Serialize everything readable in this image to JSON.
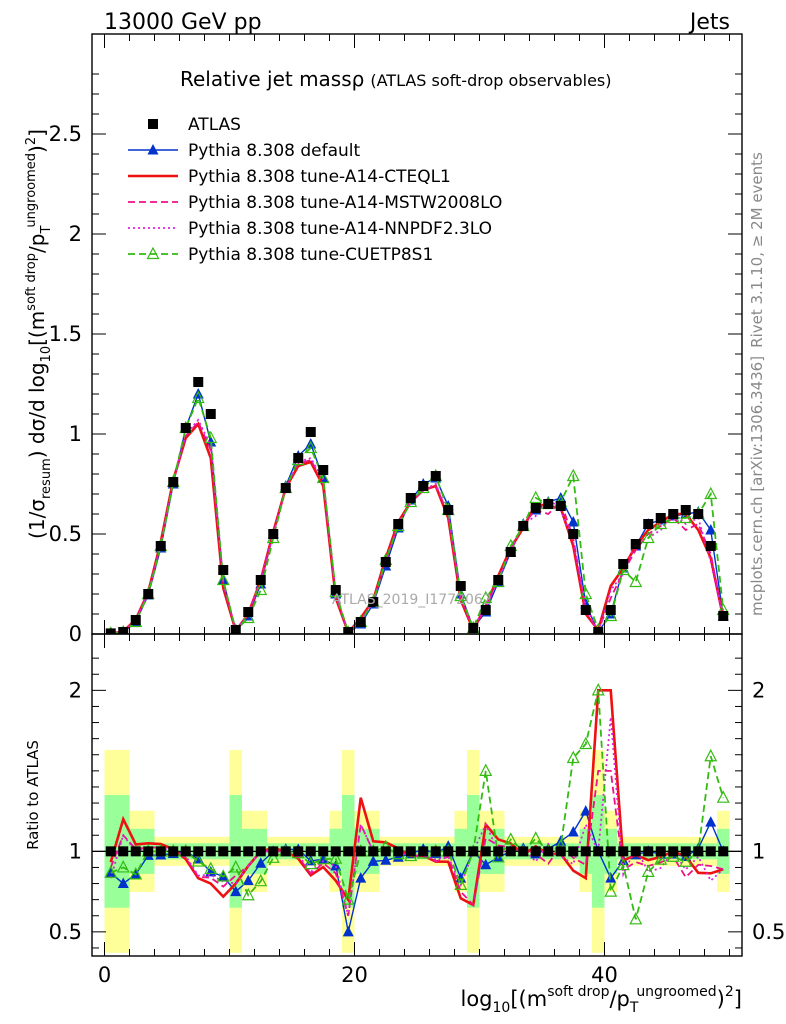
{
  "header": {
    "left": "13000 GeV pp",
    "right": "Jets"
  },
  "title": "Relative jet massρ",
  "subtitle": "(ATLAS soft-drop observables)",
  "side_label_top": "Rivet 3.1.10, ≥ 2M events",
  "side_label_bottom": "mcplots.cern.ch [arXiv:1306.3436]",
  "watermark": "ATLAS_2019_I1772062",
  "ylabel_main": "(1/σ_resum) dσ/d log10[(m^(soft drop)/p_T^(ungroomed))^2]",
  "ylabel_ratio": "Ratio to ATLAS",
  "xlabel": "log10[(m^(soft drop)/p_T^(ungroomed))^2]",
  "legend": [
    {
      "label": "ATLAS",
      "color": "#000000",
      "marker": "square",
      "dash": "none"
    },
    {
      "label": "Pythia 8.308 default",
      "color": "#0033cc",
      "marker": "triangle",
      "dash": "solid"
    },
    {
      "label": "Pythia 8.308 tune-A14-CTEQL1",
      "color": "#ee1111",
      "marker": "none",
      "dash": "solid-thick"
    },
    {
      "label": "Pythia 8.308 tune-A14-MSTW2008LO",
      "color": "#ee1188",
      "marker": "none",
      "dash": "dashed"
    },
    {
      "label": "Pythia 8.308 tune-A14-NNPDF2.3LO",
      "color": "#dd22dd",
      "marker": "none",
      "dash": "dotted"
    },
    {
      "label": "Pythia 8.308 tune-CUETP8S1",
      "color": "#33bb11",
      "marker": "open-triangle",
      "dash": "dashed"
    }
  ],
  "chart_data": {
    "type": "line",
    "main": {
      "xlim": [
        -1,
        51
      ],
      "ylim": [
        0,
        3
      ],
      "yticks": [
        0,
        0.5,
        1,
        1.5,
        2,
        2.5
      ],
      "ytick_labels": [
        "0",
        "0.5",
        "1",
        "1.5",
        "2",
        "2.5"
      ]
    },
    "ratio": {
      "xlim": [
        -1,
        51
      ],
      "ylim": [
        0.35,
        2.35
      ],
      "yticks": [
        0.5,
        1,
        2
      ],
      "ytick_labels": [
        "0.5",
        "1",
        "2"
      ]
    },
    "xticks": [
      0,
      20,
      40
    ],
    "xtick_labels": [
      "0",
      "20",
      "40"
    ],
    "x": [
      0.5,
      1.5,
      2.5,
      3.5,
      4.5,
      5.5,
      6.5,
      7.5,
      8.5,
      9.5,
      10.5,
      11.5,
      12.5,
      13.5,
      14.5,
      15.5,
      16.5,
      17.5,
      18.5,
      19.5,
      20.5,
      21.5,
      22.5,
      23.5,
      24.5,
      25.5,
      26.5,
      27.5,
      28.5,
      29.5,
      30.5,
      31.5,
      32.5,
      33.5,
      34.5,
      35.5,
      36.5,
      37.5,
      38.5,
      39.5,
      40.5,
      41.5,
      42.5,
      43.5,
      44.5,
      45.5,
      46.5,
      47.5,
      48.5,
      49.5
    ],
    "series": [
      {
        "name": "ATLAS",
        "values": [
          0.003,
          0.01,
          0.07,
          0.2,
          0.44,
          0.76,
          1.03,
          1.26,
          1.1,
          0.32,
          0.02,
          0.11,
          0.27,
          0.5,
          0.73,
          0.88,
          1.01,
          0.82,
          0.22,
          0.01,
          0.06,
          0.16,
          0.36,
          0.55,
          0.68,
          0.74,
          0.79,
          0.62,
          0.24,
          0.03,
          0.12,
          0.27,
          0.41,
          0.54,
          0.63,
          0.65,
          0.64,
          0.5,
          0.12,
          0.01,
          0.12,
          0.35,
          0.45,
          0.55,
          0.58,
          0.6,
          0.62,
          0.6,
          0.44,
          0.09
        ]
      },
      {
        "name": "Pythia 8.308 default",
        "values": [
          0.0026,
          0.008,
          0.06,
          0.195,
          0.43,
          0.75,
          1.03,
          1.2,
          0.96,
          0.27,
          0.015,
          0.09,
          0.25,
          0.5,
          0.74,
          0.89,
          0.95,
          0.78,
          0.2,
          0.005,
          0.05,
          0.15,
          0.34,
          0.53,
          0.67,
          0.75,
          0.78,
          0.64,
          0.2,
          0.03,
          0.11,
          0.26,
          0.41,
          0.55,
          0.62,
          0.66,
          0.68,
          0.56,
          0.15,
          0.01,
          0.1,
          0.33,
          0.44,
          0.55,
          0.57,
          0.59,
          0.6,
          0.61,
          0.52,
          0.09
        ]
      },
      {
        "name": "Pythia 8.308 tune-A14-CTEQL1",
        "values": [
          0.0028,
          0.012,
          0.073,
          0.21,
          0.46,
          0.77,
          0.98,
          1.05,
          0.88,
          0.23,
          0.016,
          0.1,
          0.27,
          0.51,
          0.73,
          0.84,
          0.86,
          0.74,
          0.18,
          0.007,
          0.08,
          0.17,
          0.38,
          0.56,
          0.66,
          0.72,
          0.74,
          0.58,
          0.17,
          0.02,
          0.14,
          0.29,
          0.43,
          0.53,
          0.65,
          0.64,
          0.63,
          0.44,
          0.1,
          0.02,
          0.24,
          0.33,
          0.44,
          0.52,
          0.56,
          0.6,
          0.6,
          0.52,
          0.38,
          0.08
        ]
      },
      {
        "name": "Pythia 8.308 tune-A14-MSTW2008LO",
        "values": [
          0.0027,
          0.011,
          0.071,
          0.205,
          0.45,
          0.76,
          0.99,
          1.06,
          0.92,
          0.25,
          0.017,
          0.1,
          0.27,
          0.5,
          0.73,
          0.85,
          0.87,
          0.76,
          0.19,
          0.006,
          0.07,
          0.16,
          0.36,
          0.55,
          0.66,
          0.72,
          0.74,
          0.6,
          0.18,
          0.02,
          0.13,
          0.28,
          0.42,
          0.55,
          0.62,
          0.6,
          0.66,
          0.48,
          0.11,
          0.015,
          0.18,
          0.31,
          0.42,
          0.5,
          0.54,
          0.58,
          0.52,
          0.55,
          0.4,
          0.08
        ]
      },
      {
        "name": "Pythia 8.308 tune-A14-NNPDF2.3LO",
        "values": [
          0.0025,
          0.011,
          0.07,
          0.205,
          0.45,
          0.76,
          1.0,
          1.07,
          0.94,
          0.26,
          0.016,
          0.1,
          0.27,
          0.5,
          0.73,
          0.86,
          0.88,
          0.77,
          0.2,
          0.006,
          0.07,
          0.16,
          0.36,
          0.55,
          0.66,
          0.72,
          0.75,
          0.6,
          0.19,
          0.03,
          0.14,
          0.27,
          0.41,
          0.55,
          0.59,
          0.68,
          0.62,
          0.46,
          0.14,
          0.01,
          0.22,
          0.3,
          0.46,
          0.48,
          0.52,
          0.6,
          0.55,
          0.58,
          0.36,
          0.08
        ]
      },
      {
        "name": "Pythia 8.308 tune-CUETP8S1",
        "values": [
          0.0026,
          0.009,
          0.06,
          0.2,
          0.44,
          0.76,
          1.03,
          1.18,
          0.98,
          0.27,
          0.018,
          0.08,
          0.22,
          0.48,
          0.73,
          0.87,
          0.93,
          0.78,
          0.21,
          0.007,
          0.06,
          0.16,
          0.37,
          0.54,
          0.66,
          0.73,
          0.79,
          0.62,
          0.19,
          0.03,
          0.18,
          0.26,
          0.44,
          0.54,
          0.68,
          0.65,
          0.66,
          0.79,
          0.2,
          0.02,
          0.09,
          0.32,
          0.26,
          0.48,
          0.55,
          0.58,
          0.58,
          0.6,
          0.7,
          0.12
        ]
      }
    ]
  }
}
